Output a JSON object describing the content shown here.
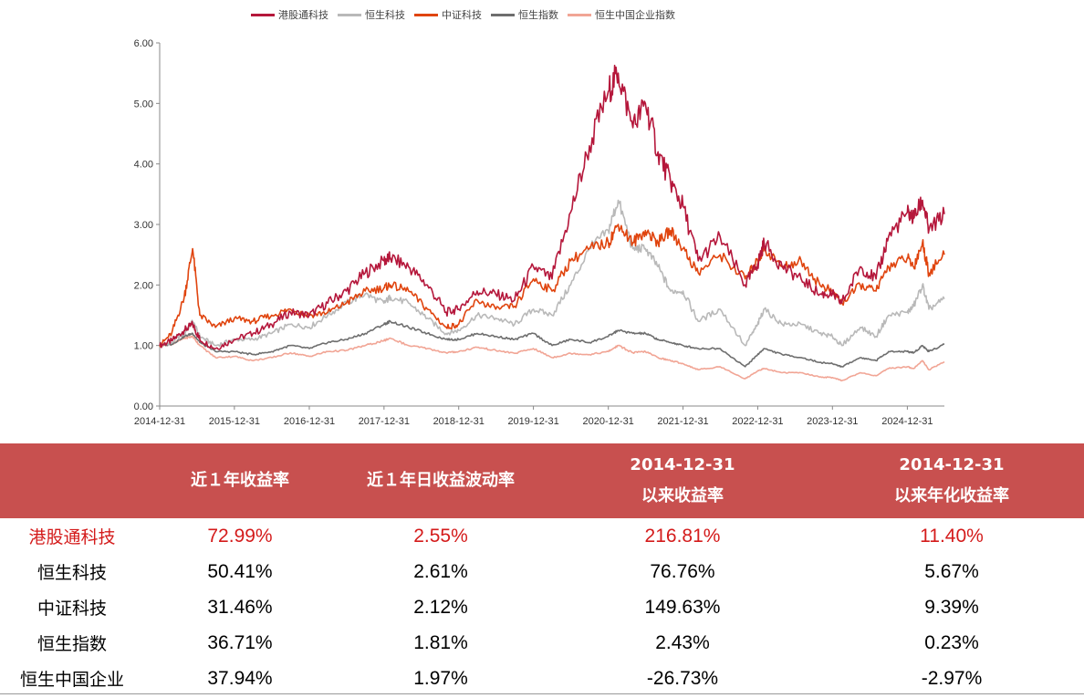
{
  "chart_data": {
    "type": "line",
    "title": "",
    "xlabel": "",
    "ylabel": "",
    "ylim": [
      0,
      6
    ],
    "yticks": [
      "0.00",
      "1.00",
      "2.00",
      "3.00",
      "4.00",
      "5.00",
      "6.00"
    ],
    "x_ticks": [
      "2014-12-31",
      "2015-12-31",
      "2016-12-31",
      "2017-12-31",
      "2018-12-31",
      "2019-12-31",
      "2020-12-31",
      "2021-12-31",
      "2022-12-31",
      "2023-12-31",
      "2024-12-31"
    ],
    "x_range": [
      "2014-12-31",
      "2025-06-30"
    ],
    "grid": false,
    "legend_position": "top",
    "x": [
      "2014-12-31",
      "2015-02-28",
      "2015-04-30",
      "2015-06-10",
      "2015-07-15",
      "2015-09-30",
      "2015-12-31",
      "2016-03-31",
      "2016-06-30",
      "2016-09-30",
      "2016-12-31",
      "2017-03-31",
      "2017-06-30",
      "2017-09-30",
      "2017-12-31",
      "2018-01-31",
      "2018-04-30",
      "2018-07-31",
      "2018-10-31",
      "2018-12-31",
      "2019-03-31",
      "2019-06-30",
      "2019-09-30",
      "2019-12-31",
      "2020-03-31",
      "2020-06-30",
      "2020-09-30",
      "2020-12-31",
      "2021-02-17",
      "2021-04-30",
      "2021-06-30",
      "2021-08-31",
      "2021-10-31",
      "2021-12-31",
      "2022-03-15",
      "2022-06-30",
      "2022-10-31",
      "2022-12-31",
      "2023-01-31",
      "2023-04-30",
      "2023-07-31",
      "2023-10-31",
      "2023-12-31",
      "2024-02-15",
      "2024-05-15",
      "2024-07-31",
      "2024-09-30",
      "2024-12-31",
      "2025-01-31",
      "2025-03-15",
      "2025-04-15",
      "2025-06-30"
    ],
    "series": [
      {
        "name": "港股通科技",
        "color": "#b5173b",
        "values": [
          1.0,
          1.08,
          1.25,
          1.35,
          1.1,
          0.95,
          1.1,
          1.2,
          1.35,
          1.55,
          1.5,
          1.7,
          1.9,
          2.2,
          2.4,
          2.45,
          2.3,
          2.0,
          1.55,
          1.6,
          1.9,
          1.85,
          1.75,
          2.3,
          2.1,
          3.2,
          4.3,
          5.2,
          5.5,
          4.6,
          5.0,
          4.2,
          3.7,
          3.3,
          2.4,
          2.8,
          2.0,
          2.35,
          2.7,
          2.3,
          2.1,
          1.85,
          1.85,
          1.7,
          2.3,
          2.1,
          2.8,
          3.2,
          3.1,
          3.4,
          2.9,
          3.17
        ]
      },
      {
        "name": "恒生科技",
        "color": "#b9b9b9",
        "values": [
          1.0,
          1.05,
          1.2,
          1.4,
          1.15,
          1.0,
          1.1,
          1.1,
          1.2,
          1.35,
          1.3,
          1.5,
          1.7,
          1.85,
          1.7,
          1.8,
          1.7,
          1.45,
          1.2,
          1.25,
          1.5,
          1.45,
          1.35,
          1.6,
          1.5,
          2.0,
          2.6,
          2.9,
          3.4,
          2.6,
          2.6,
          2.3,
          1.9,
          1.9,
          1.4,
          1.6,
          1.0,
          1.35,
          1.6,
          1.35,
          1.35,
          1.2,
          1.15,
          1.0,
          1.3,
          1.15,
          1.5,
          1.55,
          1.65,
          2.0,
          1.6,
          1.77
        ]
      },
      {
        "name": "中证科技",
        "color": "#e0440e",
        "values": [
          1.0,
          1.2,
          1.8,
          2.6,
          1.5,
          1.3,
          1.45,
          1.4,
          1.5,
          1.6,
          1.5,
          1.55,
          1.7,
          1.9,
          1.95,
          2.0,
          1.9,
          1.6,
          1.3,
          1.35,
          1.75,
          1.6,
          1.65,
          2.1,
          1.9,
          2.4,
          2.6,
          2.7,
          3.0,
          2.7,
          2.9,
          2.7,
          2.9,
          2.6,
          2.2,
          2.5,
          2.1,
          2.4,
          2.6,
          2.3,
          2.4,
          2.0,
          1.9,
          1.7,
          2.0,
          1.9,
          2.3,
          2.45,
          2.3,
          2.7,
          2.2,
          2.5
        ]
      },
      {
        "name": "恒生指数",
        "color": "#6e6e6e",
        "values": [
          1.0,
          1.02,
          1.15,
          1.2,
          1.05,
          0.9,
          0.9,
          0.85,
          0.9,
          1.0,
          0.95,
          1.05,
          1.1,
          1.2,
          1.35,
          1.4,
          1.3,
          1.2,
          1.1,
          1.1,
          1.2,
          1.15,
          1.1,
          1.2,
          1.0,
          1.1,
          1.05,
          1.15,
          1.25,
          1.2,
          1.2,
          1.1,
          1.05,
          1.0,
          0.95,
          0.95,
          0.65,
          0.85,
          0.95,
          0.85,
          0.8,
          0.72,
          0.7,
          0.65,
          0.8,
          0.75,
          0.9,
          0.9,
          0.88,
          1.0,
          0.9,
          1.02
        ]
      },
      {
        "name": "恒生中国企业指数",
        "color": "#f1a595",
        "values": [
          1.0,
          1.02,
          1.12,
          1.15,
          1.0,
          0.8,
          0.82,
          0.75,
          0.8,
          0.88,
          0.82,
          0.9,
          0.92,
          1.0,
          1.08,
          1.12,
          1.0,
          0.95,
          0.88,
          0.9,
          0.97,
          0.92,
          0.87,
          0.95,
          0.8,
          0.87,
          0.85,
          0.9,
          1.0,
          0.88,
          0.9,
          0.8,
          0.75,
          0.7,
          0.6,
          0.65,
          0.45,
          0.58,
          0.62,
          0.55,
          0.55,
          0.48,
          0.47,
          0.42,
          0.55,
          0.5,
          0.62,
          0.65,
          0.62,
          0.75,
          0.6,
          0.73
        ]
      }
    ]
  },
  "table": {
    "headers": [
      {
        "line1": "",
        "line2": ""
      },
      {
        "line1": "近１年收益率",
        "line2": ""
      },
      {
        "line1": "近１年日收益波动率",
        "line2": ""
      },
      {
        "line1": "2014-12-31",
        "line2": "以来收益率"
      },
      {
        "line1": "2014-12-31",
        "line2": "以来年化收益率"
      }
    ],
    "rows": [
      {
        "name": "港股通科技",
        "highlight": true,
        "cells": [
          "72.99%",
          "2.55%",
          "216.81%",
          "11.40%"
        ]
      },
      {
        "name": "恒生科技",
        "highlight": false,
        "cells": [
          "50.41%",
          "2.61%",
          "76.76%",
          "5.67%"
        ]
      },
      {
        "name": "中证科技",
        "highlight": false,
        "cells": [
          "31.46%",
          "2.12%",
          "149.63%",
          "9.39%"
        ]
      },
      {
        "name": "恒生指数",
        "highlight": false,
        "cells": [
          "36.71%",
          "1.81%",
          "2.43%",
          "0.23%"
        ]
      },
      {
        "name": "恒生中国企业",
        "highlight": false,
        "cells": [
          "37.94%",
          "1.97%",
          "-26.73%",
          "-2.97%"
        ]
      }
    ]
  },
  "colors": {
    "header_bg": "#c8504f",
    "highlight_text": "#d41b1b"
  }
}
